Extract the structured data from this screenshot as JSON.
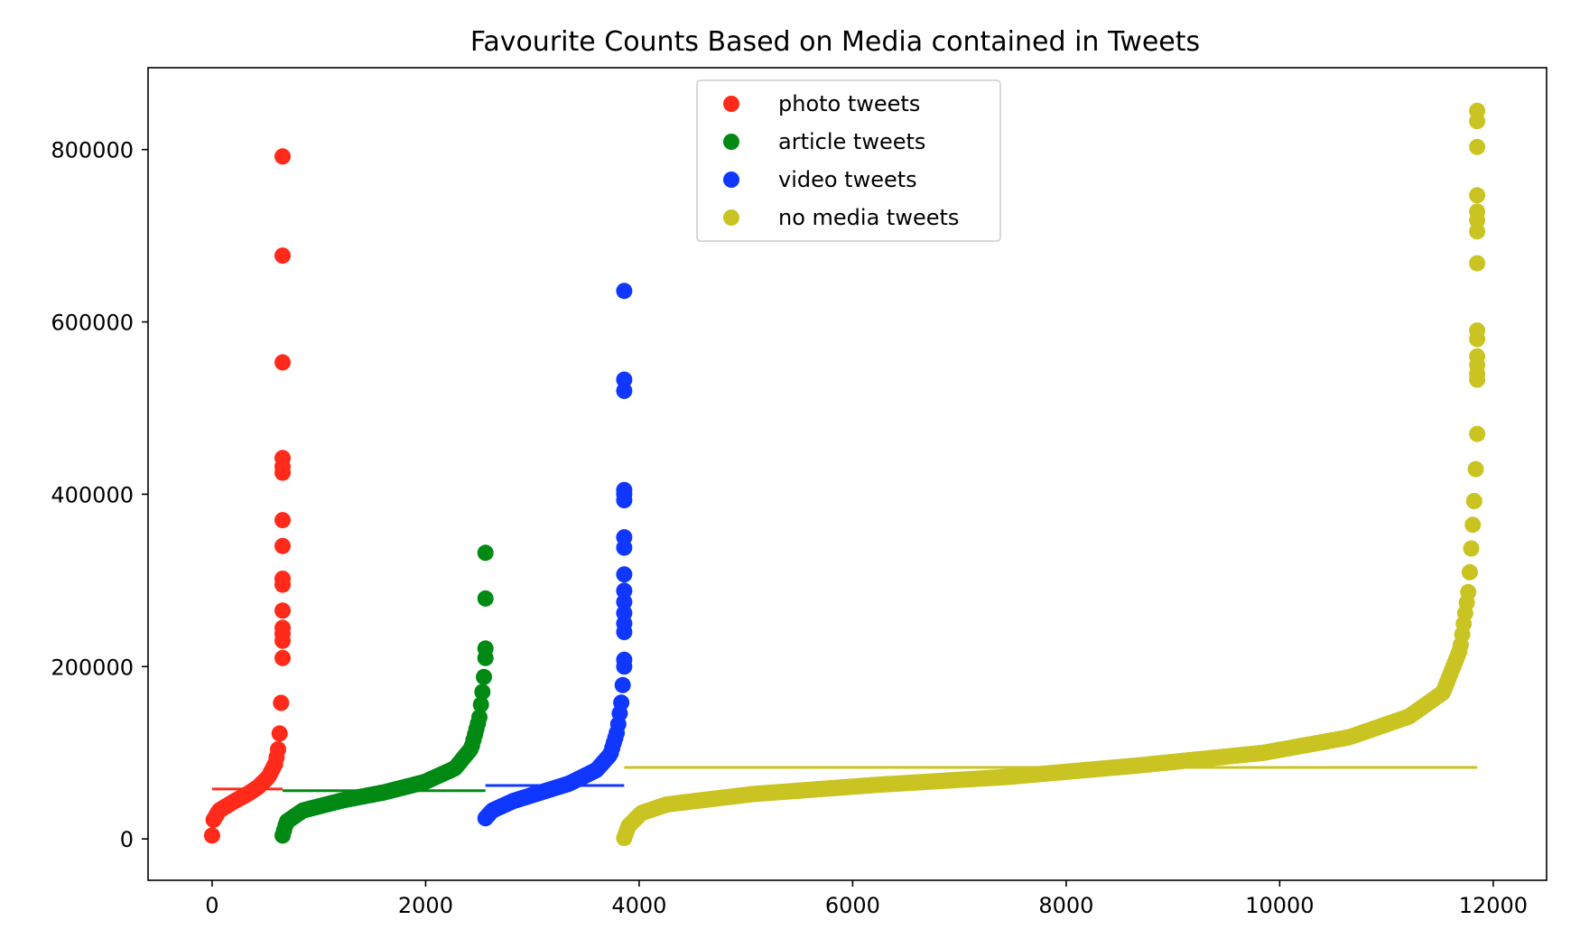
{
  "chart_data": {
    "type": "scatter",
    "title": "Favourite Counts Based on Media contained in Tweets",
    "xlabel": "",
    "ylabel": "",
    "xlim": [
      -600,
      12500
    ],
    "ylim": [
      -48000,
      895000
    ],
    "xticks": [
      0,
      2000,
      4000,
      6000,
      8000,
      10000,
      12000
    ],
    "yticks": [
      0,
      200000,
      400000,
      600000,
      800000
    ],
    "grid": false,
    "legend_position": "top-center",
    "series": [
      {
        "name": "photo tweets",
        "color": "#ff2a1a",
        "x_range": [
          0,
          660
        ],
        "mean": 58000,
        "curve": [
          [
            0,
            4000
          ],
          [
            0.02,
            22000
          ],
          [
            0.1,
            33000
          ],
          [
            0.3,
            43000
          ],
          [
            0.5,
            52000
          ],
          [
            0.65,
            60000
          ],
          [
            0.8,
            72000
          ],
          [
            0.9,
            88000
          ],
          [
            0.95,
            110000
          ],
          [
            0.98,
            160000
          ],
          [
            1.0,
            210000
          ]
        ],
        "outliers": [
          230000,
          238000,
          245000,
          265000,
          295000,
          302000,
          340000,
          370000,
          425000,
          432000,
          442000,
          553000,
          677000,
          792000
        ]
      },
      {
        "name": "article tweets",
        "color": "#008a14",
        "x_range": [
          660,
          2560
        ],
        "mean": 56000,
        "curve": [
          [
            0,
            4000
          ],
          [
            0.02,
            20000
          ],
          [
            0.1,
            33000
          ],
          [
            0.3,
            45000
          ],
          [
            0.5,
            54000
          ],
          [
            0.7,
            66000
          ],
          [
            0.85,
            82000
          ],
          [
            0.93,
            105000
          ],
          [
            0.97,
            140000
          ],
          [
            0.99,
            180000
          ],
          [
            1.0,
            210000
          ]
        ],
        "outliers": [
          221000,
          279000,
          332000
        ]
      },
      {
        "name": "video tweets",
        "color": "#0f37ff",
        "x_range": [
          2560,
          3860
        ],
        "mean": 62000,
        "curve": [
          [
            0,
            24000
          ],
          [
            0.05,
            33000
          ],
          [
            0.2,
            44000
          ],
          [
            0.4,
            54000
          ],
          [
            0.6,
            64000
          ],
          [
            0.8,
            80000
          ],
          [
            0.9,
            98000
          ],
          [
            0.95,
            125000
          ],
          [
            0.98,
            160000
          ],
          [
            1.0,
            200000
          ]
        ],
        "outliers": [
          208000,
          240000,
          250000,
          262000,
          275000,
          288000,
          307000,
          338000,
          350000,
          393000,
          400000,
          405000,
          520000,
          533000,
          636000
        ]
      },
      {
        "name": "no media tweets",
        "color": "#c9c422",
        "x_range": [
          3860,
          11850
        ],
        "mean": 83000,
        "curve": [
          [
            0,
            1000
          ],
          [
            0.005,
            15000
          ],
          [
            0.02,
            30000
          ],
          [
            0.05,
            40000
          ],
          [
            0.15,
            52000
          ],
          [
            0.3,
            63000
          ],
          [
            0.45,
            72000
          ],
          [
            0.6,
            85000
          ],
          [
            0.75,
            100000
          ],
          [
            0.85,
            118000
          ],
          [
            0.92,
            142000
          ],
          [
            0.96,
            170000
          ],
          [
            0.98,
            220000
          ],
          [
            0.99,
            290000
          ],
          [
            0.997,
            400000
          ],
          [
            1.0,
            470000
          ]
        ],
        "outliers": [
          533000,
          540000,
          550000,
          560000,
          580000,
          590000,
          668000,
          705000,
          718000,
          728000,
          747000,
          803000,
          833000,
          845000
        ]
      }
    ]
  }
}
